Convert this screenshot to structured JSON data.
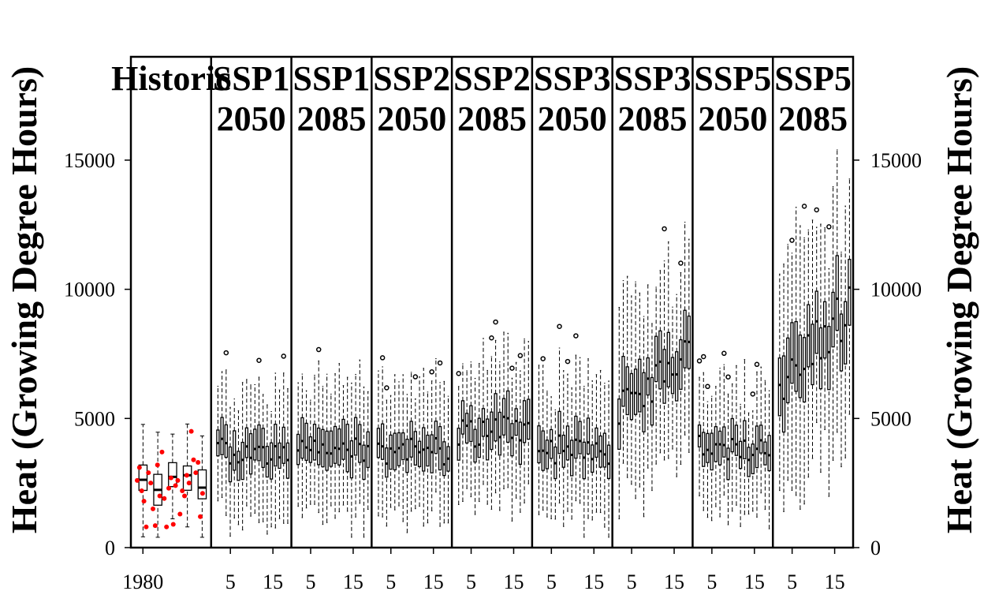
{
  "chart_data": {
    "type": "box",
    "ylabel_left": "Heat (Growing Degree Hours)",
    "ylabel_right": "Heat (Growing Degree Hours)",
    "ylim": [
      0,
      19000
    ],
    "yticks": [
      0,
      5000,
      10000,
      15000
    ],
    "grid": false,
    "panels": [
      {
        "title": [
          "Historic"
        ],
        "xticks": [
          "1980"
        ],
        "mean": 2500,
        "spread": 900,
        "n_boxes": 5
      },
      {
        "title": [
          "SSP1",
          "2050"
        ],
        "xticks": [
          "5",
          "15"
        ],
        "mean": 3700,
        "spread": 1200,
        "n_boxes": 18
      },
      {
        "title": [
          "SSP1",
          "2085"
        ],
        "xticks": [
          "5",
          "15"
        ],
        "mean": 3900,
        "spread": 1250,
        "n_boxes": 18
      },
      {
        "title": [
          "SSP2",
          "2050"
        ],
        "xticks": [
          "5",
          "15"
        ],
        "mean": 3700,
        "spread": 1200,
        "n_boxes": 18
      },
      {
        "title": [
          "SSP2",
          "2085"
        ],
        "xticks": [
          "5",
          "15"
        ],
        "mean": 4500,
        "spread": 1350,
        "n_boxes": 18
      },
      {
        "title": [
          "SSP3",
          "2050"
        ],
        "xticks": [
          "5",
          "15"
        ],
        "mean": 3800,
        "spread": 1250,
        "n_boxes": 18
      },
      {
        "title": [
          "SSP3",
          "2085"
        ],
        "xticks": [
          "5",
          "15"
        ],
        "mean": 5300,
        "spread": 1700,
        "n_boxes": 18
      },
      {
        "title": [
          "SSP5",
          "2050"
        ],
        "xticks": [
          "5",
          "15"
        ],
        "mean": 3900,
        "spread": 1200,
        "n_boxes": 18
      },
      {
        "title": [
          "SSP5",
          "2085"
        ],
        "xticks": [
          "5",
          "15"
        ],
        "mean": 6500,
        "spread": 2200,
        "n_boxes": 18
      }
    ],
    "historic_points_color": "#ff0000",
    "historic_points": [
      2600,
      3100,
      2200,
      1800,
      800,
      2900,
      2500,
      1500,
      850,
      3200,
      2000,
      3700,
      1900,
      800,
      2300,
      2700,
      900,
      2400,
      2600,
      1300,
      2200,
      2000,
      2800,
      2500,
      4500,
      3400,
      2900,
      3300,
      1200,
      2100
    ]
  }
}
